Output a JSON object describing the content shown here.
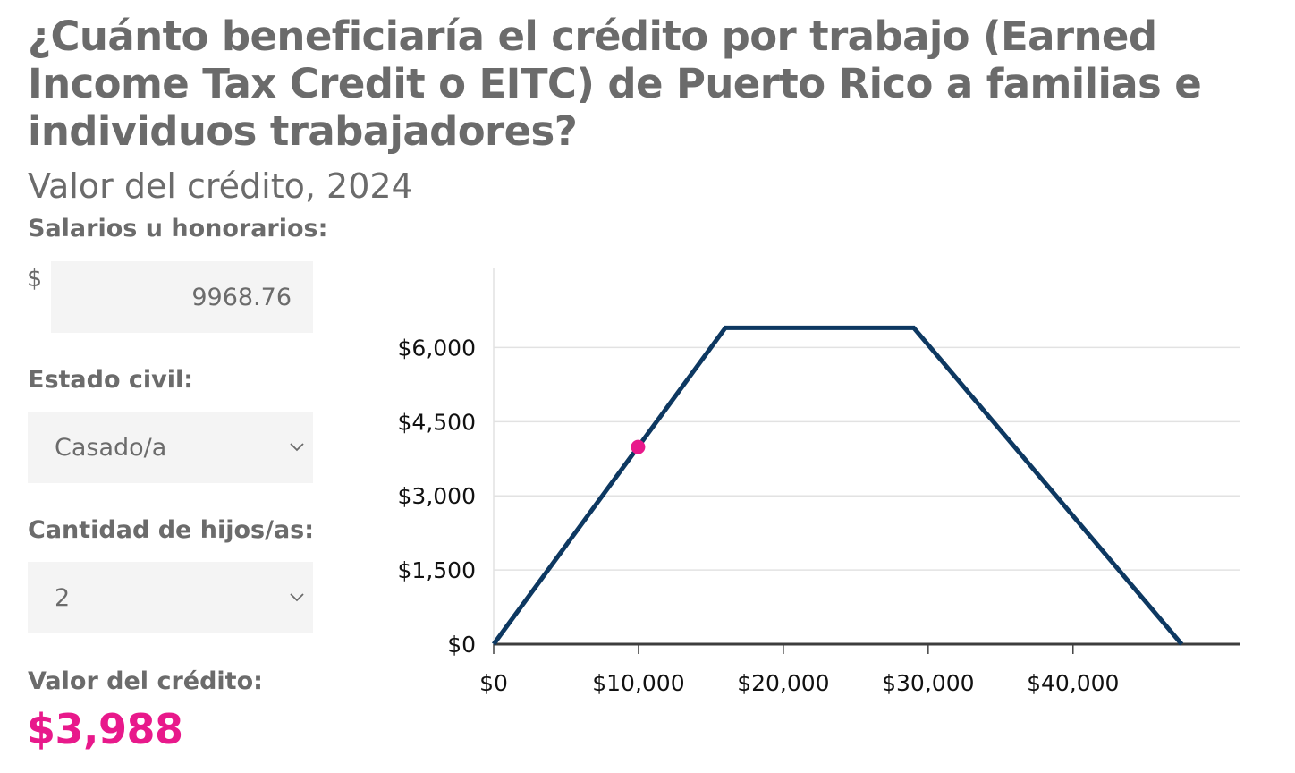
{
  "header": {
    "title": "¿Cuánto beneficiaría el crédito por trabajo (Earned Income Tax Credit o EITC) de Puerto Rico a familias e individuos trabajadores?",
    "subtitle": "Valor del crédito, 2024"
  },
  "form": {
    "wage_label": "Salarios u honorarios:",
    "currency_symbol": "$",
    "wage_value": "9968.76",
    "status_label": "Estado civil:",
    "status_value": "Casado/a",
    "children_label": "Cantidad de hijos/as:",
    "children_value": "2",
    "credit_label": "Valor del crédito:",
    "credit_value": "$3,988"
  },
  "colors": {
    "line": "#0d3861",
    "marker": "#e8198b",
    "text": "#6b6b6b"
  },
  "icons": {
    "select_arrow": "chevron-down-icon"
  },
  "chart_data": {
    "type": "line",
    "x": [
      0,
      16000,
      29000,
      47500
    ],
    "y": [
      0,
      6400,
      6400,
      0
    ],
    "marker": {
      "x": 9968.76,
      "y": 3988
    },
    "xlim": [
      0,
      51500
    ],
    "ylim": [
      0,
      7600
    ],
    "xticks": [
      0,
      10000,
      20000,
      30000,
      40000
    ],
    "xtick_labels": [
      "$0",
      "$10,000",
      "$20,000",
      "$30,000",
      "$40,000"
    ],
    "yticks": [
      0,
      1500,
      3000,
      4500,
      6000
    ],
    "ytick_labels": [
      "$0",
      "$1,500",
      "$3,000",
      "$4,500",
      "$6,000"
    ],
    "grid": true,
    "legend": "none"
  }
}
